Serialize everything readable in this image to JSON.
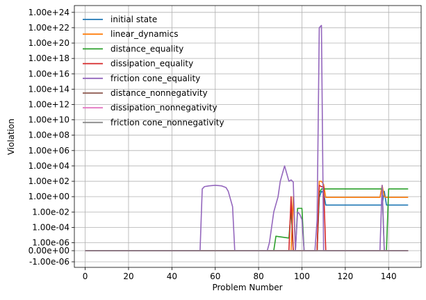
{
  "chart_data": {
    "type": "line",
    "title": "",
    "xlabel": "Problem Number",
    "ylabel": "Violation",
    "xlim": [
      -5,
      155
    ],
    "x_ticks": [
      0,
      20,
      40,
      60,
      80,
      100,
      120,
      140
    ],
    "y_ticks": [
      {
        "label": "1.00e+24",
        "value": 1e+24
      },
      {
        "label": "1.00e+22",
        "value": 1e+22
      },
      {
        "label": "1.00e+20",
        "value": 1e+20
      },
      {
        "label": "1.00e+18",
        "value": 1e+18
      },
      {
        "label": "1.00e+16",
        "value": 1e+16
      },
      {
        "label": "1.00e+14",
        "value": 100000000000000.0
      },
      {
        "label": "1.00e+12",
        "value": 1000000000000.0
      },
      {
        "label": "1.00e+10",
        "value": 10000000000.0
      },
      {
        "label": "1.00e+08",
        "value": 100000000.0
      },
      {
        "label": "1.00e+06",
        "value": 1000000.0
      },
      {
        "label": "1.00e+04",
        "value": 10000.0
      },
      {
        "label": "1.00e+02",
        "value": 100.0
      },
      {
        "label": "1.00e+00",
        "value": 1
      },
      {
        "label": "1.00e-02",
        "value": 0.01
      },
      {
        "label": "1.00e-04",
        "value": 0.0001
      },
      {
        "label": "1.00e-06",
        "value": 1e-06
      },
      {
        "label": "0.00e+00",
        "value": 0
      },
      {
        "label": "-1.00e-06",
        "value": -1e-06
      }
    ],
    "y_scale": "symlog",
    "linthresh": 1e-06,
    "grid": true,
    "legend_position": "top-left",
    "series": [
      {
        "name": "initial state",
        "color": "#1f77b4",
        "points": [
          [
            0,
            0
          ],
          [
            107,
            0
          ],
          [
            108,
            0.8
          ],
          [
            109,
            5
          ],
          [
            110,
            3
          ],
          [
            111,
            0.08
          ],
          [
            137,
            0.08
          ],
          [
            138,
            5
          ],
          [
            139,
            0.08
          ],
          [
            149,
            0.08
          ]
        ]
      },
      {
        "name": "linear_dynamics",
        "color": "#ff7f0e",
        "points": [
          [
            0,
            0
          ],
          [
            95,
            0
          ],
          [
            96,
            1
          ],
          [
            97,
            0
          ],
          [
            107,
            0
          ],
          [
            108,
            100
          ],
          [
            109,
            100
          ],
          [
            110,
            40
          ],
          [
            111,
            0.8
          ],
          [
            136,
            0.8
          ],
          [
            137,
            30
          ],
          [
            138,
            1
          ],
          [
            139,
            0.8
          ],
          [
            149,
            0.8
          ]
        ]
      },
      {
        "name": "distance_equality",
        "color": "#2ca02c",
        "points": [
          [
            0,
            0
          ],
          [
            87,
            0
          ],
          [
            88,
            7e-06
          ],
          [
            94,
            4e-06
          ],
          [
            95,
            0.02
          ],
          [
            96,
            0
          ],
          [
            97,
            0
          ],
          [
            98,
            0.03
          ],
          [
            99,
            0.03
          ],
          [
            100,
            0.03
          ],
          [
            101,
            0
          ],
          [
            107,
            0
          ],
          [
            108,
            3
          ],
          [
            109,
            10
          ],
          [
            137,
            10
          ],
          [
            138,
            0
          ],
          [
            139,
            0
          ],
          [
            140,
            10
          ],
          [
            149,
            10
          ]
        ]
      },
      {
        "name": "dissipation_equality",
        "color": "#d62728",
        "points": [
          [
            0,
            0
          ],
          [
            94,
            0
          ],
          [
            95,
            1
          ],
          [
            96,
            0
          ],
          [
            107,
            0
          ],
          [
            108,
            30
          ],
          [
            109,
            20
          ],
          [
            110,
            20
          ],
          [
            111,
            0
          ],
          [
            149,
            0
          ]
        ]
      },
      {
        "name": "friction cone_equality",
        "color": "#9467bd",
        "points": [
          [
            0,
            0
          ],
          [
            53,
            0
          ],
          [
            54,
            10
          ],
          [
            55,
            20
          ],
          [
            57,
            25
          ],
          [
            60,
            30
          ],
          [
            63,
            25
          ],
          [
            65,
            15
          ],
          [
            66,
            5
          ],
          [
            67,
            0.5
          ],
          [
            68,
            0.05
          ],
          [
            69,
            0
          ],
          [
            84,
            0
          ],
          [
            85,
            1e-06
          ],
          [
            86,
            0.0001
          ],
          [
            87,
            0.01
          ],
          [
            88,
            0.1
          ],
          [
            89,
            1
          ],
          [
            90,
            100
          ],
          [
            91,
            1000
          ],
          [
            92,
            10000
          ],
          [
            93,
            1000
          ],
          [
            94,
            100
          ],
          [
            95,
            150
          ],
          [
            96,
            80
          ],
          [
            97,
            0
          ],
          [
            98,
            0.01
          ],
          [
            99,
            0.005
          ],
          [
            100,
            0.001
          ],
          [
            101,
            0
          ],
          [
            106,
            0
          ],
          [
            107,
            0.001
          ],
          [
            108,
            1e+22
          ],
          [
            109,
            2e+22
          ],
          [
            110,
            0
          ],
          [
            136,
            0
          ],
          [
            137,
            30
          ],
          [
            138,
            0
          ],
          [
            149,
            0
          ]
        ]
      },
      {
        "name": "distance_nonnegativity",
        "color": "#8c564b",
        "points": [
          [
            0,
            0
          ],
          [
            149,
            0
          ]
        ]
      },
      {
        "name": "dissipation_nonnegativity",
        "color": "#e377c2",
        "points": [
          [
            0,
            0
          ],
          [
            149,
            0
          ]
        ]
      },
      {
        "name": "friction cone_nonnegativity",
        "color": "#7f7f7f",
        "points": [
          [
            0,
            0
          ],
          [
            149,
            0
          ]
        ]
      }
    ]
  }
}
